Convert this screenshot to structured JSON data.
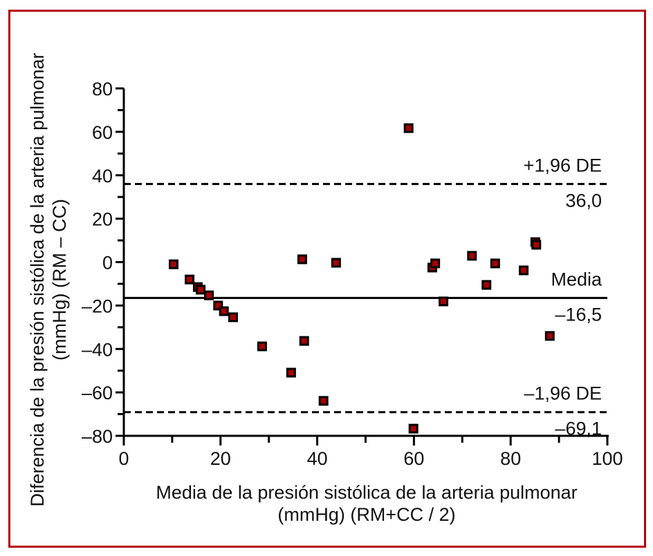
{
  "chart_data": {
    "type": "scatter",
    "title": "",
    "xlabel": [
      "Media de la presión sistólica de la arteria pulmonar",
      "(mmHg) (RM+CC / 2)"
    ],
    "ylabel": [
      "Diferencia de la presión sistólica de la arteria pulmonar",
      "(mmHg) (RM – CC)"
    ],
    "xlim": [
      0,
      100
    ],
    "ylim": [
      -80,
      80
    ],
    "x_ticks": [
      0,
      20,
      40,
      60,
      80,
      100
    ],
    "x_tick_labels": [
      "0",
      "20",
      "40",
      "60",
      "80",
      "100"
    ],
    "y_ticks": [
      80,
      60,
      40,
      20,
      0,
      -20,
      -40,
      -60,
      -80
    ],
    "y_tick_labels": [
      "80",
      "60",
      "40",
      "20",
      "0",
      "–20",
      "–40",
      "–60",
      "–80"
    ],
    "grid": false,
    "marker_color": "#a80000",
    "marker_edge_color": "#000000",
    "frame_color": "#b5000f",
    "points": [
      {
        "x": 10.3,
        "y": -1.0
      },
      {
        "x": 13.6,
        "y": -8.0
      },
      {
        "x": 15.3,
        "y": -11.5
      },
      {
        "x": 15.9,
        "y": -12.7
      },
      {
        "x": 17.6,
        "y": -15.3
      },
      {
        "x": 19.5,
        "y": -20.0
      },
      {
        "x": 20.7,
        "y": -22.6
      },
      {
        "x": 22.6,
        "y": -25.4
      },
      {
        "x": 28.6,
        "y": -38.8
      },
      {
        "x": 34.6,
        "y": -50.9
      },
      {
        "x": 36.9,
        "y": 1.3
      },
      {
        "x": 37.3,
        "y": -36.3
      },
      {
        "x": 41.3,
        "y": -63.9
      },
      {
        "x": 43.9,
        "y": -0.3
      },
      {
        "x": 58.9,
        "y": 61.7
      },
      {
        "x": 59.9,
        "y": -76.7
      },
      {
        "x": 63.8,
        "y": -2.5
      },
      {
        "x": 64.4,
        "y": -0.6
      },
      {
        "x": 66.1,
        "y": -18.1
      },
      {
        "x": 72.0,
        "y": 2.9
      },
      {
        "x": 75.0,
        "y": -10.5
      },
      {
        "x": 76.8,
        "y": -0.6
      },
      {
        "x": 82.7,
        "y": -3.8
      },
      {
        "x": 85.1,
        "y": 9.2
      },
      {
        "x": 85.3,
        "y": 8.0
      },
      {
        "x": 88.1,
        "y": -34.0
      }
    ],
    "reference_lines": [
      {
        "name": "upper-limit",
        "value": 36.0,
        "style": "dashed",
        "label_above": "+1,96 DE",
        "label_below": "36,0"
      },
      {
        "name": "mean",
        "value": -16.5,
        "style": "solid",
        "label_above": "Media",
        "label_below": "–16,5"
      },
      {
        "name": "lower-limit",
        "value": -69.1,
        "style": "dashed",
        "label_above": "–1,96 DE",
        "label_below": "–69,1"
      }
    ]
  }
}
